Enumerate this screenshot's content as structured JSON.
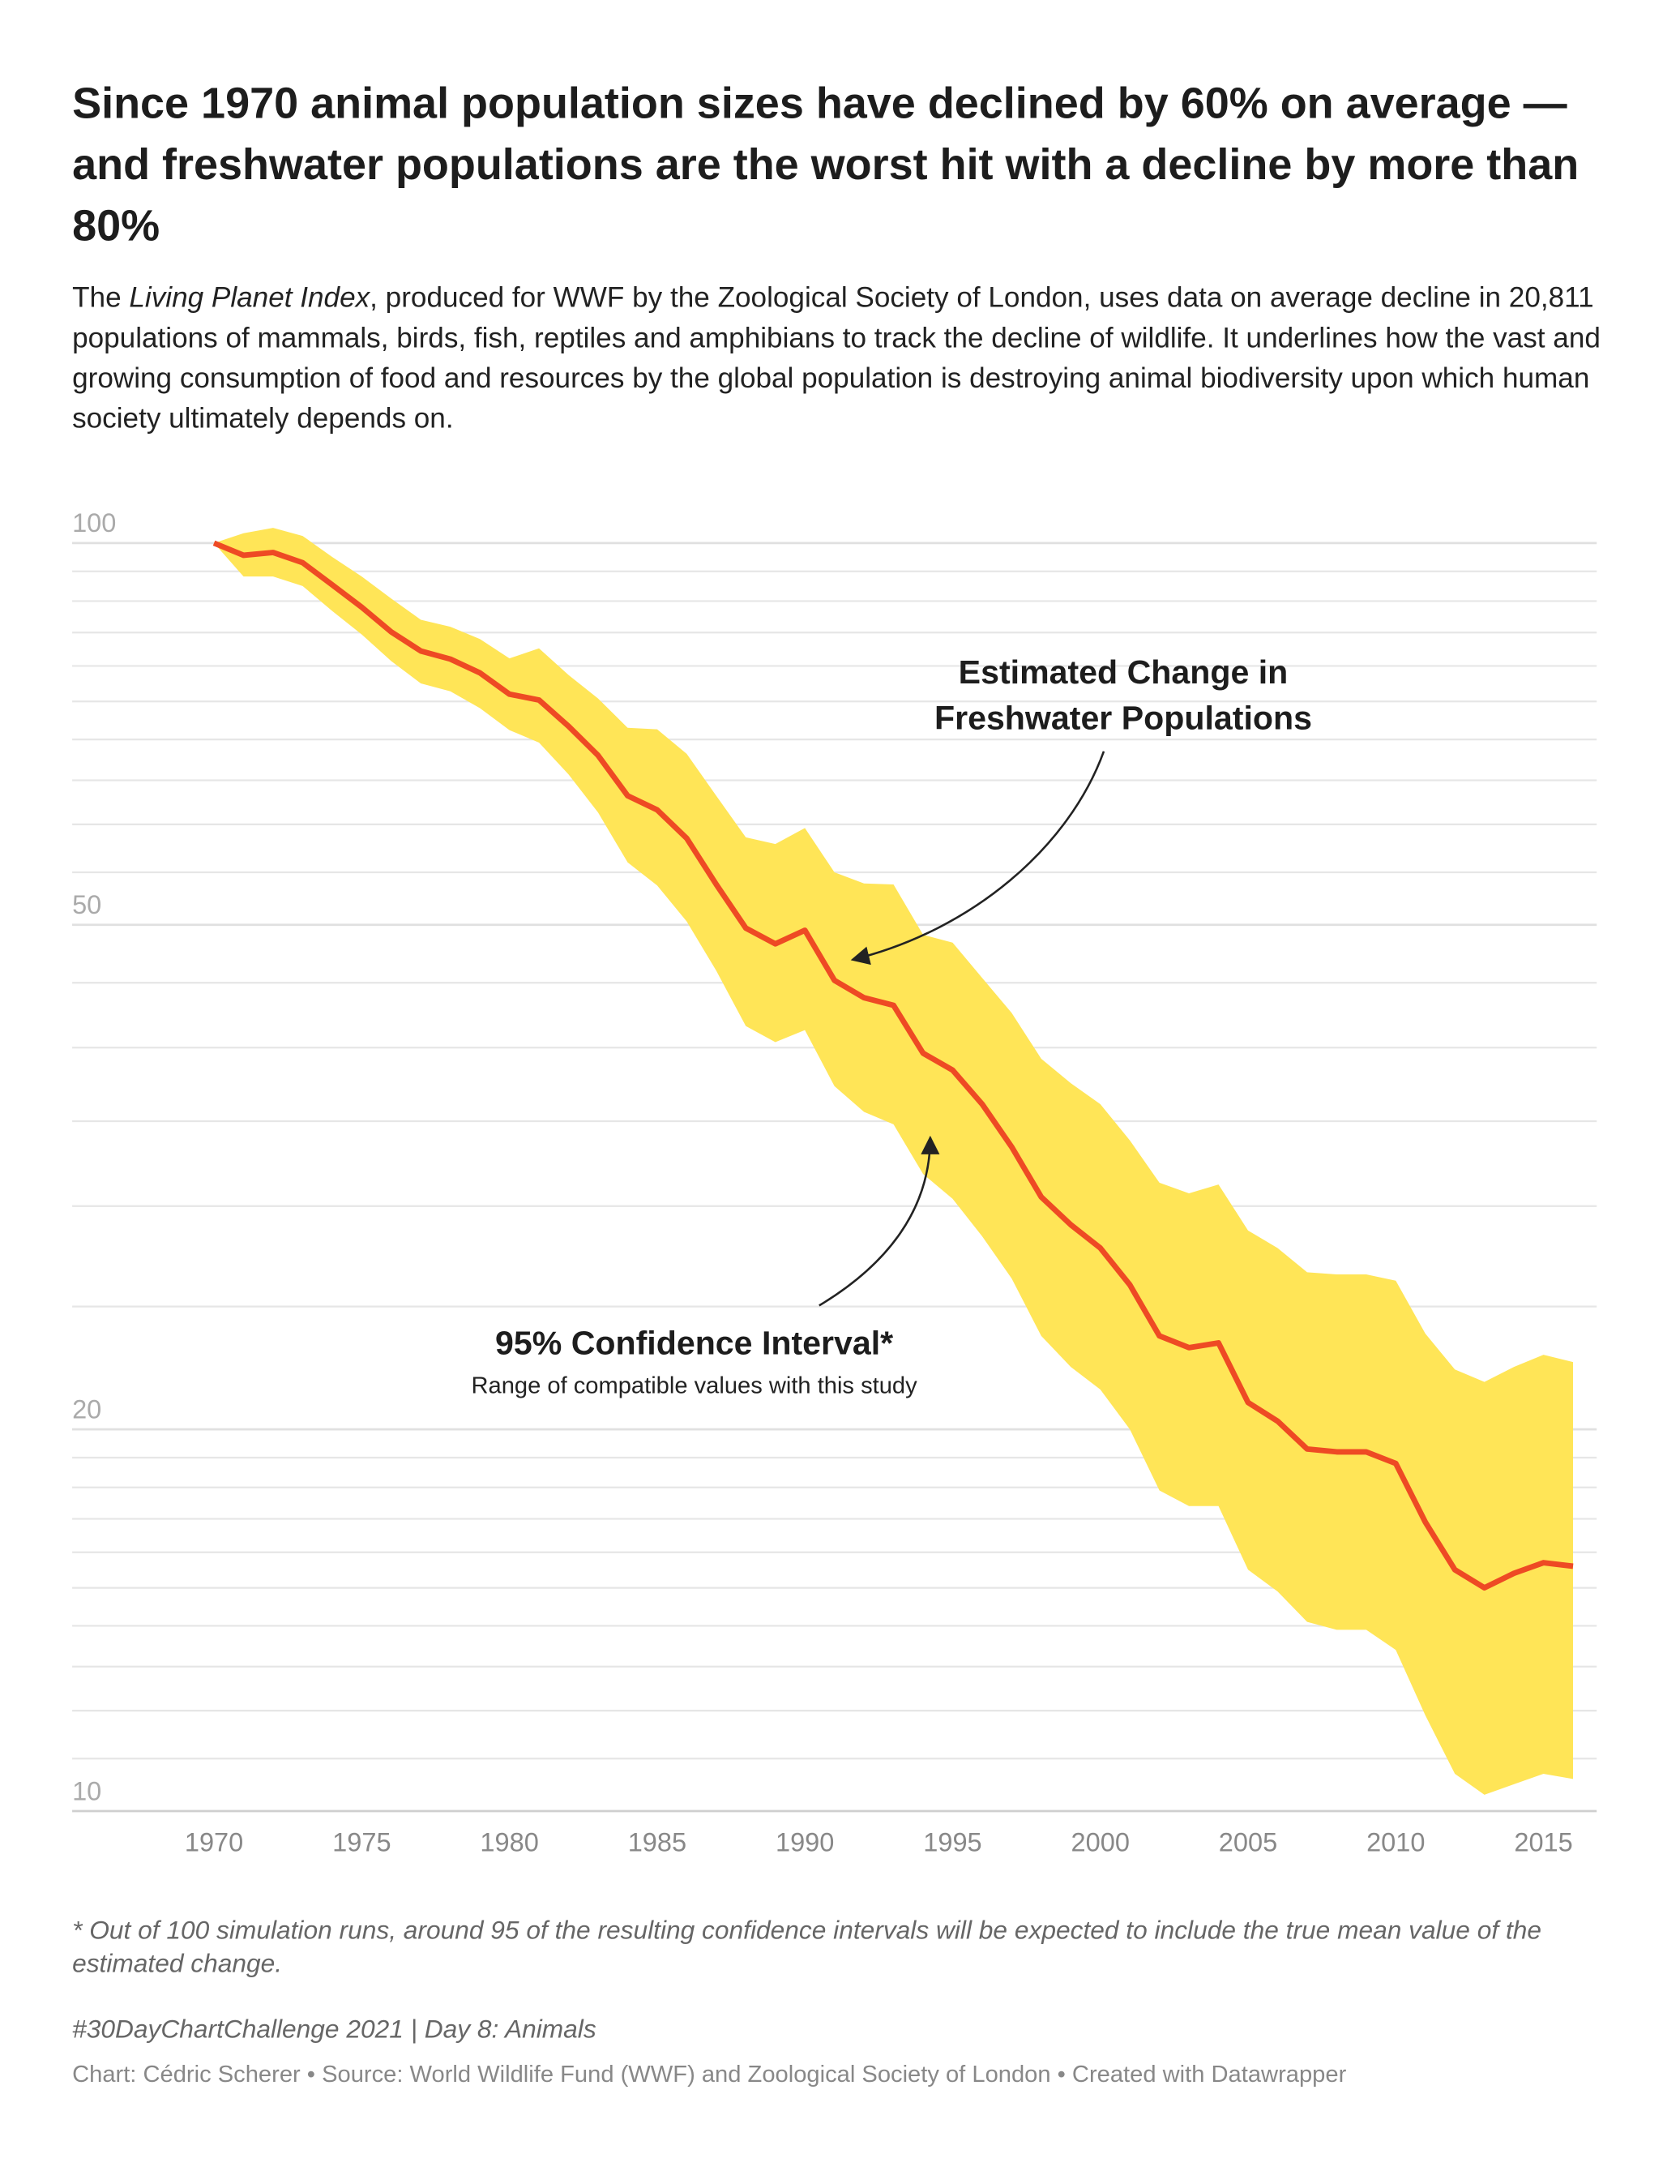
{
  "chart_data": {
    "type": "line",
    "title": "Since 1970 animal population sizes have declined by 60% on average — and freshwater populations are the worst hit with a decline by more than 80%",
    "subtitle": [
      {
        "text": "The "
      },
      {
        "text": "Living Planet Index",
        "italic": true
      },
      {
        "text": ", produced for WWF by the Zoological Society of London, uses data on average decline in 20,811 populations of mammals, birds, fish, reptiles and amphibians to track the decline of wildlife. It underlines how the vast and growing consumption of food and resources by the global population is destroying animal biodiversity upon which human society ultimately depends on."
      }
    ],
    "x": [
      1970,
      1971,
      1972,
      1973,
      1974,
      1975,
      1976,
      1977,
      1978,
      1979,
      1980,
      1981,
      1982,
      1983,
      1984,
      1985,
      1986,
      1987,
      1988,
      1989,
      1990,
      1991,
      1992,
      1993,
      1994,
      1995,
      1996,
      1997,
      1998,
      1999,
      2000,
      2001,
      2002,
      2003,
      2004,
      2005,
      2006,
      2007,
      2008,
      2009,
      2010,
      2011,
      2012,
      2013,
      2014,
      2015,
      2016
    ],
    "series": [
      {
        "color": "#ee4a24",
        "values": [
          100,
          97.8,
          98.3,
          96.5,
          92.7,
          89.0,
          85.1,
          82.2,
          81.0,
          79.0,
          76.0,
          75.2,
          71.7,
          68.0,
          63.2,
          61.6,
          58.5,
          53.8,
          49.7,
          48.3,
          49.5,
          45.2,
          43.8,
          43.2,
          39.6,
          38.4,
          36.1,
          33.4,
          30.5,
          29.0,
          27.8,
          26.0,
          23.7,
          23.2,
          23.4,
          21.0,
          20.3,
          19.3,
          19.2,
          19.2,
          18.8,
          16.9,
          15.5,
          15.0,
          15.4,
          15.7,
          15.6
        ]
      }
    ],
    "band": {
      "color": "#ffe557",
      "upper": [
        100,
        101.8,
        102.8,
        101.3,
        97.5,
        94.1,
        90.4,
        87.0,
        85.9,
        84.0,
        81.1,
        82.6,
        78.7,
        75.4,
        71.5,
        71.3,
        68.2,
        63.2,
        58.6,
        57.9,
        59.6,
        55.0,
        53.9,
        53.8,
        49.1,
        48.4,
        45.4,
        42.6,
        39.2,
        37.5,
        36.1,
        33.8,
        31.3,
        30.7,
        31.2,
        28.7,
        27.8,
        26.6,
        26.5,
        26.5,
        26.2,
        23.8,
        22.3,
        21.8,
        22.4,
        22.9,
        22.6
      ],
      "lower": [
        100,
        94.1,
        94.1,
        92.5,
        88.4,
        84.7,
        80.7,
        77.5,
        76.4,
        74.1,
        71.2,
        69.6,
        65.7,
        61.3,
        56.0,
        53.7,
        50.3,
        46.0,
        41.6,
        40.4,
        41.3,
        37.3,
        35.6,
        34.8,
        31.8,
        30.4,
        28.4,
        26.3,
        23.7,
        22.4,
        21.5,
        20.0,
        17.9,
        17.4,
        17.4,
        15.5,
        14.9,
        14.1,
        13.9,
        13.9,
        13.4,
        11.9,
        10.7,
        10.3,
        10.5,
        10.7,
        10.6
      ]
    },
    "xlim": [
      1965.2,
      2016.8
    ],
    "xticks": [
      1970,
      1975,
      1980,
      1985,
      1990,
      1995,
      2000,
      2005,
      2010,
      2015
    ],
    "ylim": [
      10,
      100
    ],
    "log_y": true,
    "yticks": [
      10,
      20,
      50,
      100
    ],
    "y_gridlines": [
      11,
      12,
      13,
      14,
      15,
      16,
      17,
      18,
      19,
      20,
      25,
      30,
      35,
      40,
      45,
      50,
      55,
      60,
      65,
      70,
      75,
      80,
      85,
      90,
      95,
      100
    ],
    "annotations": [
      {
        "lines": [
          "Estimated Change in",
          "Freshwater Populations"
        ]
      },
      {
        "lines": [
          "95% Confidence Interval*"
        ],
        "text": "Range of compatible values with this study"
      }
    ],
    "note": "* Out of 100 simulation runs, around 95 of the resulting confidence intervals will be expected to include the true mean value of the estimated change.",
    "tag": "#30DayChartChallenge 2021 | Day 8: Animals",
    "credit": "Chart: Cédric Scherer • Source: World Wildlife Fund (WWF) and Zoological Society of London • Created with Datawrapper"
  }
}
